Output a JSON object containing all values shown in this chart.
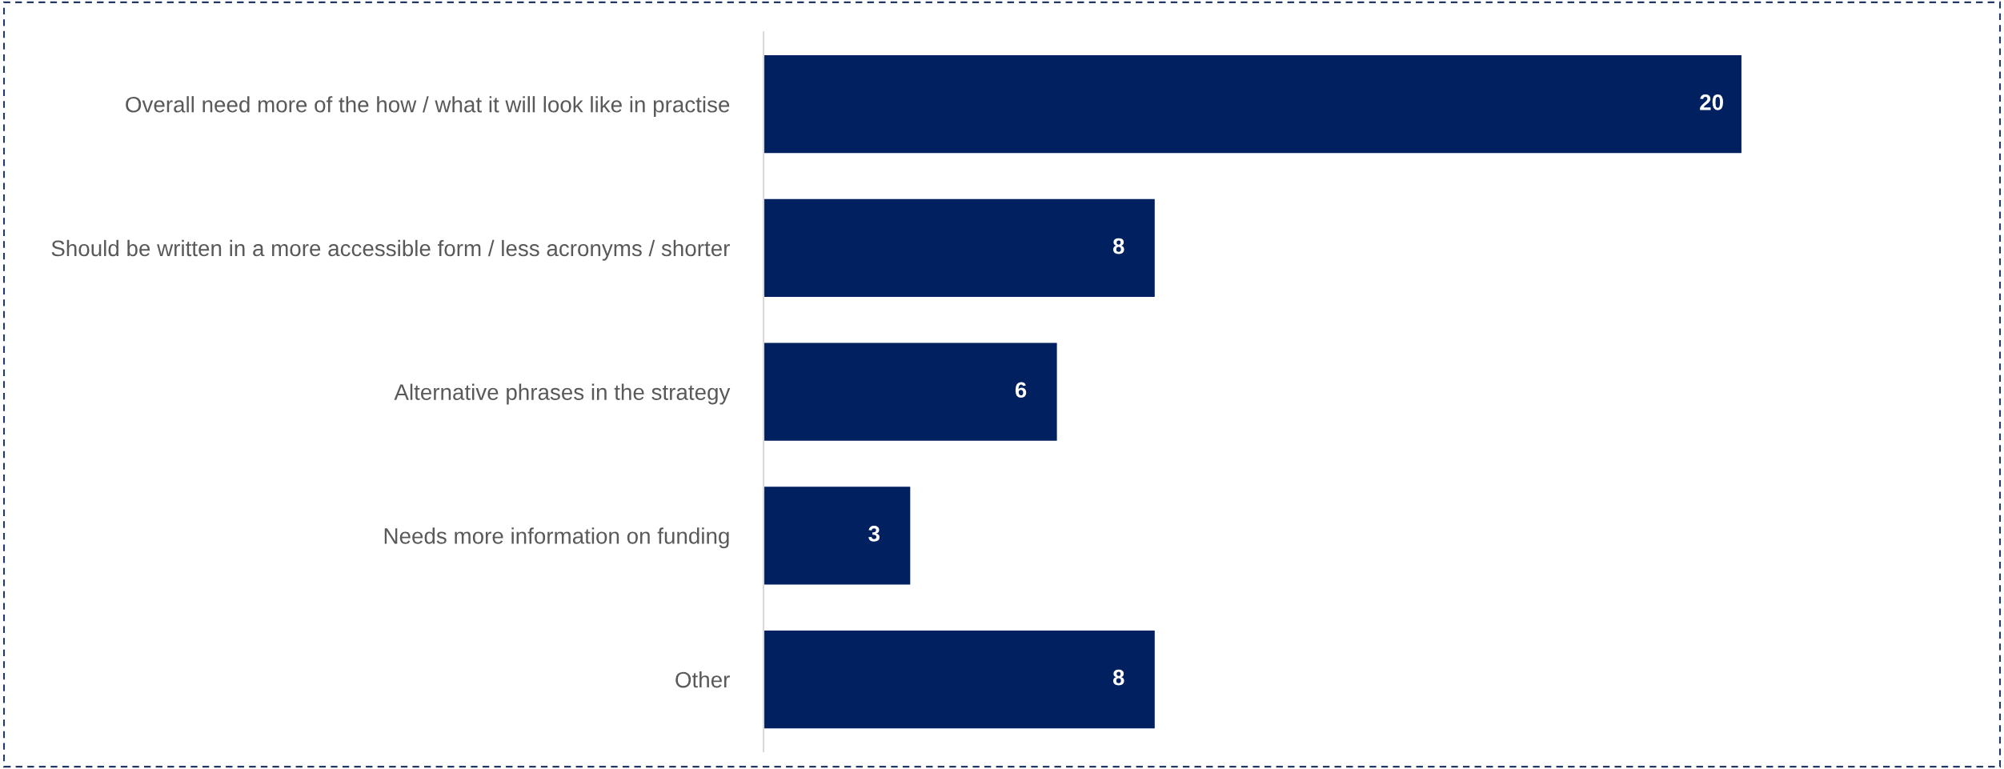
{
  "chart_data": {
    "type": "bar",
    "orientation": "horizontal",
    "categories": [
      "Overall need more of the how / what it will look like in practise",
      "Should be written in a more accessible form / less acronyms / shorter",
      "Alternative phrases in the strategy",
      "Needs more information on funding",
      "Other"
    ],
    "values": [
      20,
      8,
      6,
      3,
      8
    ],
    "color": "#002060",
    "data_labels": true,
    "grid": false,
    "legend": false,
    "tick_labels": "y"
  }
}
